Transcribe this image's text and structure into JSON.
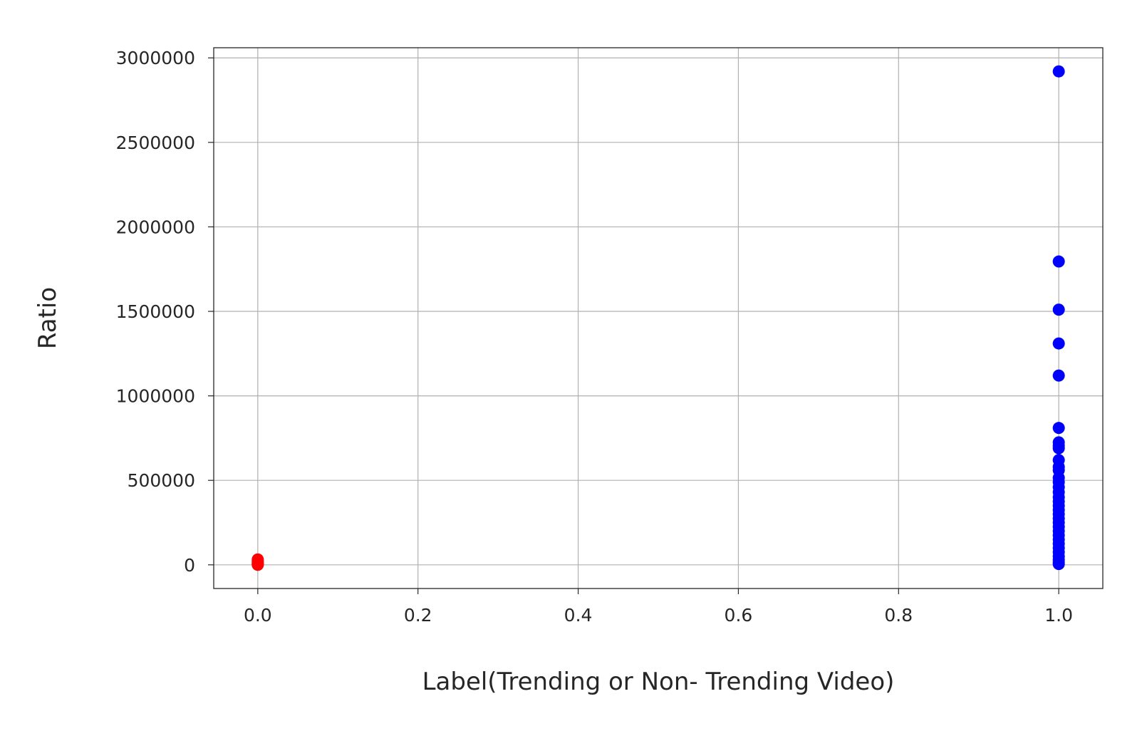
{
  "chart_data": {
    "type": "scatter",
    "title": "",
    "xlabel": "Label(Trending or Non- Trending Video)",
    "ylabel": "Ratio",
    "xlim": [
      -0.055,
      1.055
    ],
    "ylim": [
      -140000,
      3060000
    ],
    "xticks": [
      0.0,
      0.2,
      0.4,
      0.6,
      0.8,
      1.0
    ],
    "xtick_labels": [
      "0.0",
      "0.2",
      "0.4",
      "0.6",
      "0.8",
      "1.0"
    ],
    "yticks": [
      0,
      500000,
      1000000,
      1500000,
      2000000,
      2500000,
      3000000
    ],
    "ytick_labels": [
      "0",
      "500000",
      "1000000",
      "1500000",
      "2000000",
      "2500000",
      "3000000"
    ],
    "grid": true,
    "legend": "none",
    "series": [
      {
        "color": "#ff0000",
        "points": [
          {
            "x": 0,
            "y": 0
          },
          {
            "x": 0,
            "y": 3000
          },
          {
            "x": 0,
            "y": 7000
          },
          {
            "x": 0,
            "y": 12000
          },
          {
            "x": 0,
            "y": 18000
          },
          {
            "x": 0,
            "y": 25000
          },
          {
            "x": 0,
            "y": 32000
          }
        ]
      },
      {
        "color": "#0000ff",
        "points": [
          {
            "x": 1,
            "y": 2920000
          },
          {
            "x": 1,
            "y": 1795000
          },
          {
            "x": 1,
            "y": 1510000
          },
          {
            "x": 1,
            "y": 1310000
          },
          {
            "x": 1,
            "y": 1120000
          },
          {
            "x": 1,
            "y": 810000
          },
          {
            "x": 1,
            "y": 725000
          },
          {
            "x": 1,
            "y": 705000
          },
          {
            "x": 1,
            "y": 690000
          },
          {
            "x": 1,
            "y": 620000
          },
          {
            "x": 1,
            "y": 580000
          },
          {
            "x": 1,
            "y": 560000
          },
          {
            "x": 1,
            "y": 515000
          },
          {
            "x": 1,
            "y": 490000
          },
          {
            "x": 1,
            "y": 460000
          },
          {
            "x": 1,
            "y": 430000
          },
          {
            "x": 1,
            "y": 400000
          },
          {
            "x": 1,
            "y": 375000
          },
          {
            "x": 1,
            "y": 350000
          },
          {
            "x": 1,
            "y": 325000
          },
          {
            "x": 1,
            "y": 300000
          },
          {
            "x": 1,
            "y": 275000
          },
          {
            "x": 1,
            "y": 250000
          },
          {
            "x": 1,
            "y": 225000
          },
          {
            "x": 1,
            "y": 200000
          },
          {
            "x": 1,
            "y": 175000
          },
          {
            "x": 1,
            "y": 150000
          },
          {
            "x": 1,
            "y": 125000
          },
          {
            "x": 1,
            "y": 100000
          },
          {
            "x": 1,
            "y": 75000
          },
          {
            "x": 1,
            "y": 50000
          },
          {
            "x": 1,
            "y": 30000
          },
          {
            "x": 1,
            "y": 15000
          },
          {
            "x": 1,
            "y": 5000
          }
        ]
      }
    ]
  }
}
